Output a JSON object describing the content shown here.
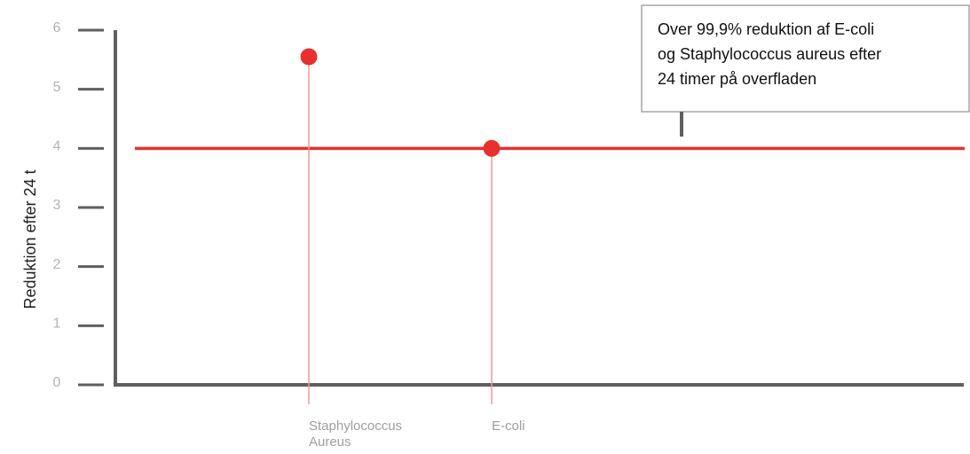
{
  "chart_data": {
    "type": "scatter",
    "title": "",
    "xlabel": "",
    "ylabel": "Reduktion efter 24 t",
    "ylim": [
      0,
      6
    ],
    "yticks": [
      "0",
      "1",
      "2",
      "3",
      "4",
      "5",
      "6"
    ],
    "categories": [
      "Staphylococcus Aureus",
      "E-coli"
    ],
    "category_lines": [
      [
        "Staphylococcus",
        "Aureus"
      ],
      [
        "E-coli"
      ]
    ],
    "values": [
      5.55,
      4.0
    ],
    "reference_line": 4.0,
    "annotation": [
      "Over 99,9% reduktion af E-coli",
      "og Staphylococcus aureus efter",
      "24 timer på overfladen"
    ],
    "grid": false,
    "colors": {
      "axis": "#5f5f5f",
      "marker": "#e8302f",
      "stem": "#f19898",
      "reference": "#e8302f",
      "tick_text": "#b3b3b3"
    }
  }
}
